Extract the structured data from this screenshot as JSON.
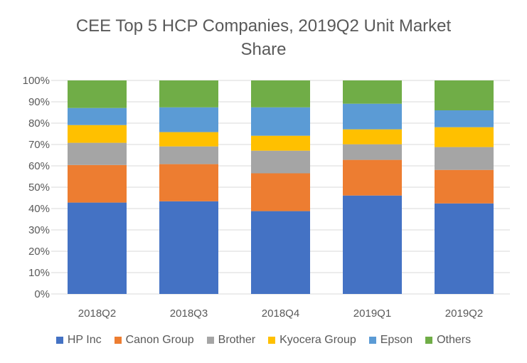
{
  "chart_data": {
    "type": "bar",
    "stacked": true,
    "title": "CEE Top 5 HCP Companies, 2019Q2 Unit Market Share",
    "title_lines": [
      "CEE Top 5 HCP Companies, 2019Q2 Unit Market",
      "Share"
    ],
    "xlabel": "",
    "ylabel": "",
    "ylim": [
      0,
      100
    ],
    "yticks": [
      "0%",
      "10%",
      "20%",
      "30%",
      "40%",
      "50%",
      "60%",
      "70%",
      "80%",
      "90%",
      "100%"
    ],
    "categories": [
      "2018Q2",
      "2018Q3",
      "2018Q4",
      "2019Q1",
      "2019Q2"
    ],
    "legend_position": "bottom",
    "grid": true,
    "series": [
      {
        "name": "HP Inc",
        "color": "#4472C4",
        "values": [
          42.8,
          43.4,
          38.8,
          46.1,
          42.4
        ]
      },
      {
        "name": "Canon Group",
        "color": "#ED7D31",
        "values": [
          17.6,
          17.4,
          17.7,
          16.7,
          15.7
        ]
      },
      {
        "name": "Brother",
        "color": "#A5A5A5",
        "values": [
          10.4,
          8.3,
          10.6,
          7.3,
          10.7
        ]
      },
      {
        "name": "Kyocera Group",
        "color": "#FFC000",
        "values": [
          8.3,
          6.7,
          7.0,
          7.0,
          9.3
        ]
      },
      {
        "name": "Epson",
        "color": "#5B9BD5",
        "values": [
          8.0,
          11.6,
          13.3,
          12.0,
          7.9
        ]
      },
      {
        "name": "Others",
        "color": "#70AD47",
        "values": [
          12.9,
          12.6,
          12.6,
          10.9,
          14.0
        ]
      }
    ]
  }
}
